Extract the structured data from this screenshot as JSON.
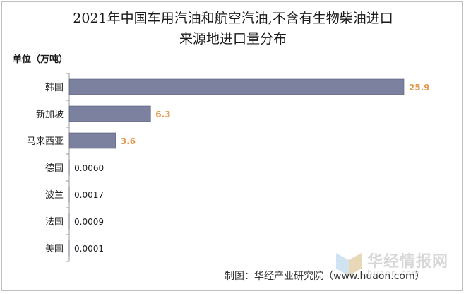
{
  "chart_data": {
    "type": "bar",
    "orientation": "horizontal",
    "title": "2021年中国车用汽油和航空汽油,不含有生物柴油进口来源地进口量分布",
    "title_line1": "2021年中国车用汽油和航空汽油,不含有生物柴油进口",
    "title_line2": "来源地进口量分布",
    "unit_label": "单位（万吨）",
    "categories": [
      "韩国",
      "新加坡",
      "马来西亚",
      "德国",
      "波兰",
      "法国",
      "美国"
    ],
    "values": [
      25.9,
      6.3,
      3.6,
      0.006,
      0.0017,
      0.0009,
      0.0001
    ],
    "value_labels": [
      "25.9",
      "6.3",
      "3.6",
      "0.0060",
      "0.0017",
      "0.0009",
      "0.0001"
    ],
    "xlim": [
      0,
      25.9
    ],
    "grid": false,
    "legend": "none",
    "colors": {
      "bar": "#7b819f",
      "bar_stroke": "#555a77",
      "label_large": "#e39a4f",
      "label_small": "#222222",
      "axis": "#9a9a9a"
    }
  },
  "credit": "制图：华经产业研究院（www.huaon.com）",
  "watermark": {
    "logo_text": "华经情报网",
    "logo_url": "huaon.com",
    "icon": "huaon-logo-icon"
  }
}
